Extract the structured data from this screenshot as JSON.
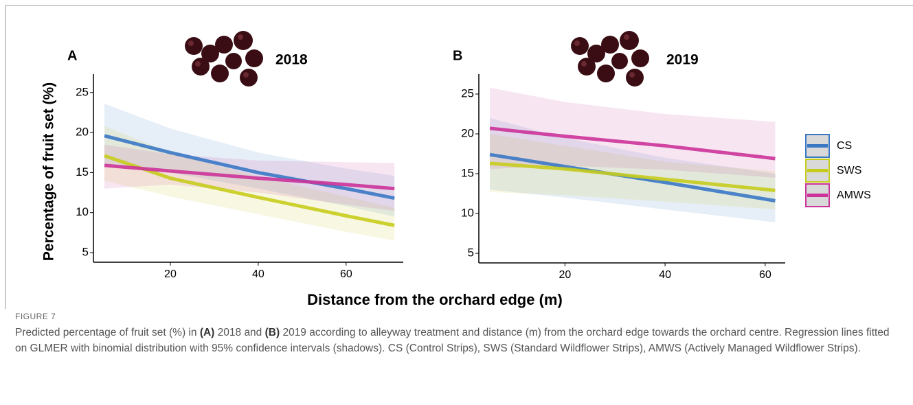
{
  "chart_data": [
    {
      "type": "line",
      "panel": "A",
      "title": "2018",
      "ylabel": "Percentage of fruit set (%)",
      "x": [
        5,
        20,
        40,
        60,
        71
      ],
      "xlim": [
        2.5,
        73
      ],
      "xticks": [
        20,
        40,
        60
      ],
      "ylim": [
        3.8,
        27.3
      ],
      "yticks": [
        5,
        10,
        15,
        20,
        25
      ],
      "series": [
        {
          "name": "CS",
          "color": "#3a78c4",
          "values": [
            19.6,
            17.5,
            15.0,
            13.0,
            11.8
          ],
          "upper": [
            23.6,
            20.5,
            17.5,
            15.5,
            14.6
          ],
          "lower": [
            16.0,
            15.0,
            13.0,
            10.8,
            9.5
          ]
        },
        {
          "name": "SWS",
          "color": "#c6cc1c",
          "values": [
            17.1,
            14.3,
            11.9,
            9.6,
            8.4
          ],
          "upper": [
            20.8,
            17.5,
            14.5,
            12.0,
            10.6
          ],
          "lower": [
            14.0,
            12.0,
            9.8,
            7.6,
            6.5
          ]
        },
        {
          "name": "AMWS",
          "color": "#cc3399",
          "values": [
            15.9,
            15.2,
            14.3,
            13.5,
            13.0
          ],
          "upper": [
            18.5,
            17.3,
            16.5,
            16.3,
            16.2
          ],
          "lower": [
            13.0,
            13.5,
            12.5,
            11.0,
            10.2
          ]
        }
      ]
    },
    {
      "type": "line",
      "panel": "B",
      "title": "2019",
      "x": [
        5,
        20,
        40,
        62
      ],
      "xlim": [
        2.8,
        64
      ],
      "xticks": [
        20,
        40,
        60
      ],
      "ylim": [
        3.8,
        27.5
      ],
      "yticks": [
        5,
        10,
        15,
        20,
        25
      ],
      "series": [
        {
          "color": "#3a78c4",
          "values": [
            17.4,
            15.9,
            13.9,
            11.6
          ],
          "upper": [
            22.0,
            19.5,
            17.0,
            15.0
          ],
          "lower": [
            13.0,
            12.0,
            10.5,
            8.9
          ]
        },
        {
          "color": "#c6cc1c",
          "values": [
            16.3,
            15.6,
            14.3,
            12.9
          ],
          "upper": [
            20.0,
            18.5,
            16.5,
            15.3
          ],
          "lower": [
            12.7,
            12.3,
            11.5,
            10.5
          ]
        },
        {
          "color": "#cc3399",
          "values": [
            20.7,
            19.7,
            18.5,
            16.9
          ],
          "upper": [
            25.8,
            24.0,
            22.5,
            21.5
          ],
          "lower": [
            15.6,
            16.0,
            15.5,
            14.5
          ]
        }
      ]
    }
  ],
  "x_label": "Distance from the orchard edge (m)",
  "figure_label": "FIGURE 7",
  "caption": [
    "Predicted percentage of fruit set (%) in ",
    "(A)",
    " 2018 and ",
    "(B)",
    " 2019 according to alleyway treatment and distance (m) from the orchard edge towards the orchard centre. Regression lines fitted on GLMER with binomial distribution with 95% confidence intervals (shadows). CS (Control Strips), SWS (Standard Wildflower Strips), AMWS (Actively Managed Wildflower Strips)."
  ]
}
